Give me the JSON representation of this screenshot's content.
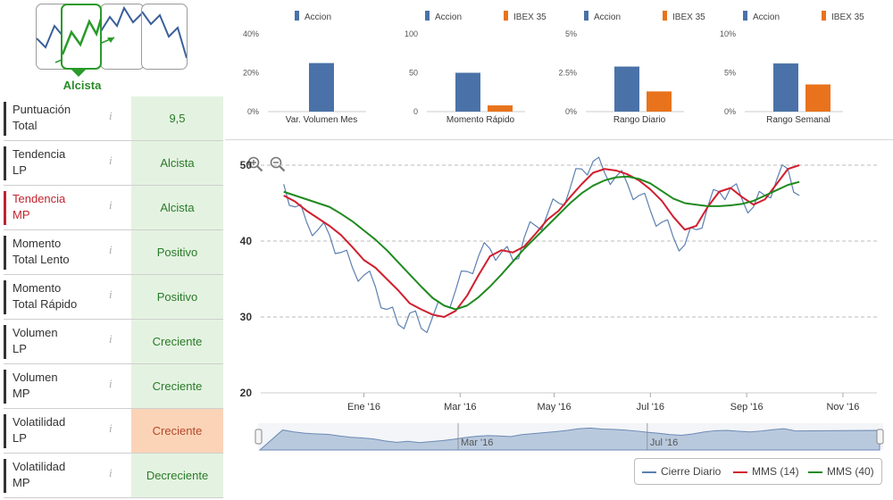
{
  "trend": {
    "label": "Alcista",
    "boxes": [
      "lateral-down",
      "alcista",
      "mixed",
      "bajista"
    ]
  },
  "indicators": [
    {
      "label_l1": "Puntuación",
      "label_l2": "Total",
      "value": "9,5",
      "info": "i",
      "highlight": false,
      "status": "good"
    },
    {
      "label_l1": "Tendencia",
      "label_l2": "LP",
      "value": "Alcista",
      "info": "i",
      "highlight": false,
      "status": "good"
    },
    {
      "label_l1": "Tendencia",
      "label_l2": "MP",
      "value": "Alcista",
      "info": "i",
      "highlight": true,
      "status": "good"
    },
    {
      "label_l1": "Momento",
      "label_l2": "Total Lento",
      "value": "Positivo",
      "info": "i",
      "highlight": false,
      "status": "good"
    },
    {
      "label_l1": "Momento",
      "label_l2": "Total Rápido",
      "value": "Positivo",
      "info": "i",
      "highlight": false,
      "status": "good"
    },
    {
      "label_l1": "Volumen",
      "label_l2": "LP",
      "value": "Creciente",
      "info": "i",
      "highlight": false,
      "status": "good"
    },
    {
      "label_l1": "Volumen",
      "label_l2": "MP",
      "value": "Creciente",
      "info": "i",
      "highlight": false,
      "status": "good"
    },
    {
      "label_l1": "Volatilidad",
      "label_l2": "LP",
      "value": "Creciente",
      "info": "i",
      "highlight": false,
      "status": "warn"
    },
    {
      "label_l1": "Volatilidad",
      "label_l2": "MP",
      "value": "Decreciente",
      "info": "i",
      "highlight": false,
      "status": "good"
    }
  ],
  "colors": {
    "accion": "#4a72a8",
    "ibex": "#e8731c",
    "cierre": "#5b7fb0",
    "mms14": "#d01f2e",
    "mms40": "#1f8a1f",
    "navigator_fill": "#b9c9dd"
  },
  "chart_data": [
    {
      "type": "bar",
      "title": "Var. Volumen Mes",
      "series": [
        {
          "name": "Accion",
          "values": [
            25
          ]
        }
      ],
      "ylim": [
        0,
        40
      ],
      "yticks": [
        "0%",
        "20%",
        "40%"
      ],
      "ytick_values": [
        0,
        20,
        40
      ]
    },
    {
      "type": "bar",
      "title": "Momento Rápido",
      "series": [
        {
          "name": "Accion",
          "values": [
            50
          ]
        },
        {
          "name": "IBEX 35",
          "values": [
            8
          ]
        }
      ],
      "ylim": [
        0,
        100
      ],
      "yticks": [
        "0",
        "50",
        "100"
      ],
      "ytick_values": [
        0,
        50,
        100
      ]
    },
    {
      "type": "bar",
      "title": "Rango Diario",
      "series": [
        {
          "name": "Accion",
          "values": [
            2.9
          ]
        },
        {
          "name": "IBEX 35",
          "values": [
            1.3
          ]
        }
      ],
      "ylim": [
        0,
        5
      ],
      "yticks": [
        "0%",
        "2.5%",
        "5%"
      ],
      "ytick_values": [
        0,
        2.5,
        5
      ]
    },
    {
      "type": "bar",
      "title": "Rango Semanal",
      "series": [
        {
          "name": "Accion",
          "values": [
            6.2
          ]
        },
        {
          "name": "IBEX 35",
          "values": [
            3.5
          ]
        }
      ],
      "ylim": [
        0,
        10
      ],
      "yticks": [
        "0%",
        "5%",
        "10%"
      ],
      "ytick_values": [
        0,
        5,
        10
      ]
    },
    {
      "type": "line",
      "title": "",
      "xlabel": "",
      "ylabel": "",
      "ylim": [
        20,
        50
      ],
      "yticks": [
        20,
        30,
        40,
        50
      ],
      "xlim": [
        -0.5,
        11.5
      ],
      "xticks": [
        {
          "label": "Ene '16",
          "x": 1.75
        },
        {
          "label": "Mar '16",
          "x": 3.85
        },
        {
          "label": "May '16",
          "x": 5.9
        },
        {
          "label": "Jul '16",
          "x": 8.0
        },
        {
          "label": "Sep '16",
          "x": 10.1
        },
        {
          "label": "Nov '16",
          "x": 12.2
        }
      ],
      "grid": "horizontal-dashed",
      "legend_position": "bottom-right",
      "x": [
        0,
        0.25,
        0.5,
        0.75,
        1,
        1.25,
        1.5,
        1.75,
        2,
        2.25,
        2.5,
        2.75,
        3,
        3.25,
        3.5,
        3.75,
        4,
        4.25,
        4.5,
        4.75,
        5,
        5.25,
        5.5,
        5.75,
        6,
        6.25,
        6.5,
        6.75,
        7,
        7.25,
        7.5,
        7.75,
        8,
        8.25,
        8.5,
        8.75,
        9,
        9.25,
        9.5,
        9.75,
        10,
        10.25,
        10.5,
        10.75,
        11,
        11.25
      ],
      "series": [
        {
          "name": "Cierre Diario",
          "values": [
            47.5,
            44.5,
            42.5,
            41.5,
            40.8,
            38.5,
            36.5,
            35.5,
            34,
            31,
            29,
            30.5,
            28.5,
            30,
            31.5,
            33.5,
            36,
            38,
            39,
            38.5,
            37.5,
            40.5,
            42,
            43.5,
            45,
            47,
            49.5,
            50.5,
            49,
            48.5,
            47.5,
            46,
            44,
            42.5,
            40.5,
            39.5,
            41.5,
            44.5,
            46.5,
            47,
            45.5,
            44.5,
            46,
            48,
            49.5,
            46
          ]
        },
        {
          "name": "MMS (14)",
          "values": [
            46,
            45.2,
            44,
            43,
            42,
            40.8,
            39.2,
            37.5,
            36.5,
            35,
            33.5,
            31.8,
            31,
            30.3,
            30,
            30.8,
            32.8,
            35.5,
            38,
            38.8,
            38.5,
            39.3,
            41,
            42.8,
            44,
            45.8,
            47.5,
            49,
            49.5,
            49.3,
            48.8,
            48,
            46.8,
            45.3,
            43.2,
            41.5,
            42,
            44.5,
            46.5,
            47,
            45.8,
            44.8,
            45.5,
            47.5,
            49.5,
            50
          ]
        },
        {
          "name": "MMS (40)",
          "values": [
            46.5,
            46,
            45.5,
            45,
            44.5,
            43.6,
            42.6,
            41.4,
            40.2,
            38.8,
            37.2,
            35.6,
            34,
            32.5,
            31.5,
            31,
            31.5,
            32.6,
            34,
            35.6,
            37.3,
            39,
            40.5,
            42,
            43.5,
            45,
            46.3,
            47.3,
            48,
            48.4,
            48.5,
            48.2,
            47.6,
            46.6,
            45.6,
            45,
            44.8,
            44.6,
            44.6,
            44.7,
            44.9,
            45.3,
            46,
            46.7,
            47.4,
            47.8
          ]
        }
      ]
    }
  ],
  "navigator": {
    "labels": [
      {
        "text": "Mar '16",
        "x": 3.85
      },
      {
        "text": "Jul '16",
        "x": 8.0
      }
    ]
  }
}
